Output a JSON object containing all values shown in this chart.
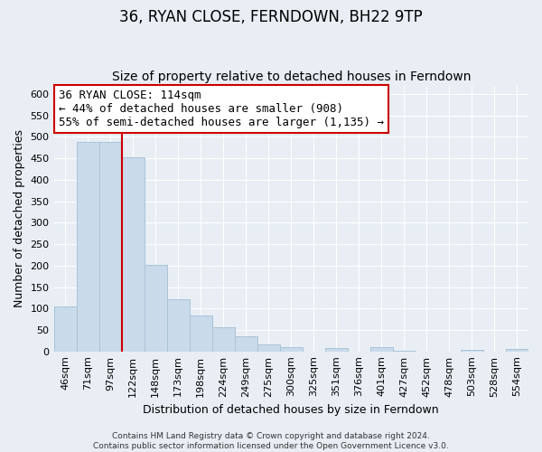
{
  "title": "36, RYAN CLOSE, FERNDOWN, BH22 9TP",
  "subtitle": "Size of property relative to detached houses in Ferndown",
  "xlabel": "Distribution of detached houses by size in Ferndown",
  "ylabel": "Number of detached properties",
  "bar_labels": [
    "46sqm",
    "71sqm",
    "97sqm",
    "122sqm",
    "148sqm",
    "173sqm",
    "198sqm",
    "224sqm",
    "249sqm",
    "275sqm",
    "300sqm",
    "325sqm",
    "351sqm",
    "376sqm",
    "401sqm",
    "427sqm",
    "452sqm",
    "478sqm",
    "503sqm",
    "528sqm",
    "554sqm"
  ],
  "bar_values": [
    105,
    488,
    488,
    453,
    202,
    122,
    83,
    57,
    36,
    16,
    10,
    0,
    8,
    0,
    10,
    2,
    0,
    0,
    3,
    0,
    5
  ],
  "bar_color": "#c9daea",
  "bar_edge_color": "#aac4d8",
  "vline_index": 2.5,
  "vline_color": "#cc0000",
  "annotation_text": "36 RYAN CLOSE: 114sqm\n← 44% of detached houses are smaller (908)\n55% of semi-detached houses are larger (1,135) →",
  "annotation_box_color": "white",
  "annotation_box_edge": "#cc0000",
  "ylim": [
    0,
    620
  ],
  "yticks": [
    0,
    50,
    100,
    150,
    200,
    250,
    300,
    350,
    400,
    450,
    500,
    550,
    600
  ],
  "background_color": "#e8eef4",
  "plot_bg_color": "#e8eef4",
  "grid_color": "#ffffff",
  "title_fontsize": 12,
  "subtitle_fontsize": 10,
  "axis_label_fontsize": 9,
  "tick_fontsize": 8,
  "annotation_fontsize": 9,
  "footnote_fontsize": 6.5
}
